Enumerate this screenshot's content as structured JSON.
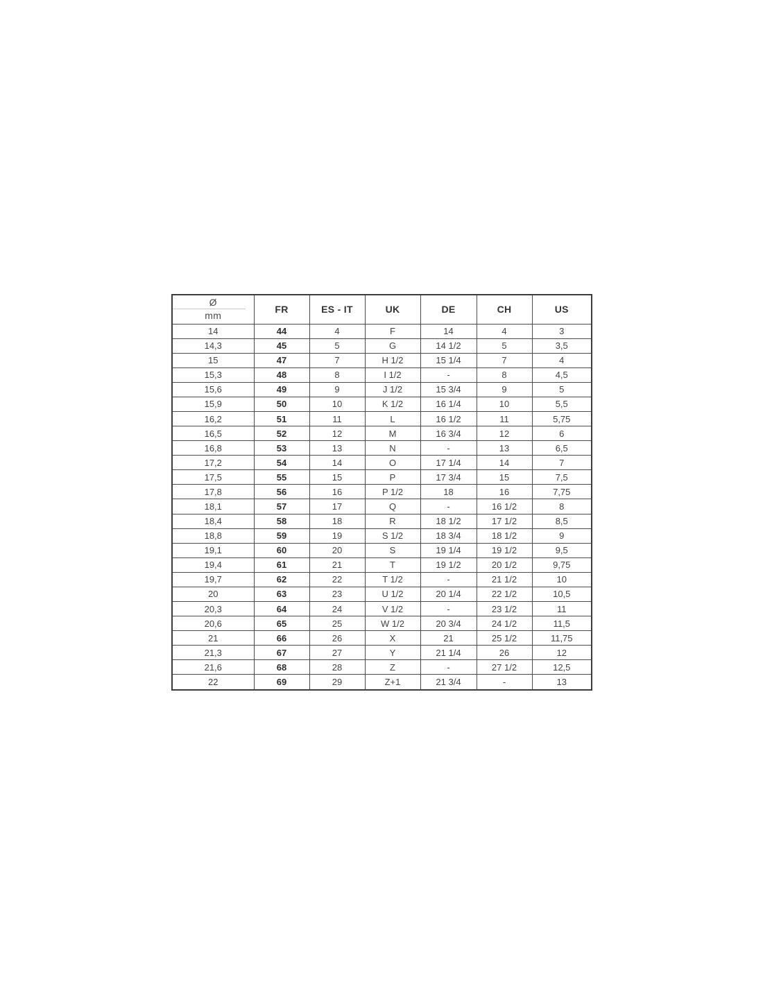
{
  "header": {
    "diameter_symbol": "Ø",
    "diameter_unit": "mm"
  },
  "chart_data": {
    "type": "table",
    "columns": [
      "Ø mm",
      "FR",
      "ES - IT",
      "UK",
      "DE",
      "CH",
      "US"
    ],
    "rows": [
      [
        "14",
        "44",
        "4",
        "F",
        "14",
        "4",
        "3"
      ],
      [
        "14,3",
        "45",
        "5",
        "G",
        "14 1/2",
        "5",
        "3,5"
      ],
      [
        "15",
        "47",
        "7",
        "H 1/2",
        "15 1/4",
        "7",
        "4"
      ],
      [
        "15,3",
        "48",
        "8",
        "I 1/2",
        "-",
        "8",
        "4,5"
      ],
      [
        "15,6",
        "49",
        "9",
        "J 1/2",
        "15 3/4",
        "9",
        "5"
      ],
      [
        "15,9",
        "50",
        "10",
        "K 1/2",
        "16 1/4",
        "10",
        "5,5"
      ],
      [
        "16,2",
        "51",
        "11",
        "L",
        "16 1/2",
        "11",
        "5,75"
      ],
      [
        "16,5",
        "52",
        "12",
        "M",
        "16 3/4",
        "12",
        "6"
      ],
      [
        "16,8",
        "53",
        "13",
        "N",
        "-",
        "13",
        "6,5"
      ],
      [
        "17,2",
        "54",
        "14",
        "O",
        "17 1/4",
        "14",
        "7"
      ],
      [
        "17,5",
        "55",
        "15",
        "P",
        "17 3/4",
        "15",
        "7,5"
      ],
      [
        "17,8",
        "56",
        "16",
        "P 1/2",
        "18",
        "16",
        "7,75"
      ],
      [
        "18,1",
        "57",
        "17",
        "Q",
        "-",
        "16 1/2",
        "8"
      ],
      [
        "18,4",
        "58",
        "18",
        "R",
        "18 1/2",
        "17 1/2",
        "8,5"
      ],
      [
        "18,8",
        "59",
        "19",
        "S 1/2",
        "18 3/4",
        "18 1/2",
        "9"
      ],
      [
        "19,1",
        "60",
        "20",
        "S",
        "19 1/4",
        "19 1/2",
        "9,5"
      ],
      [
        "19,4",
        "61",
        "21",
        "T",
        "19 1/2",
        "20 1/2",
        "9,75"
      ],
      [
        "19,7",
        "62",
        "22",
        "T 1/2",
        "-",
        "21 1/2",
        "10"
      ],
      [
        "20",
        "63",
        "23",
        "U 1/2",
        "20 1/4",
        "22 1/2",
        "10,5"
      ],
      [
        "20,3",
        "64",
        "24",
        "V 1/2",
        "-",
        "23 1/2",
        "11"
      ],
      [
        "20,6",
        "65",
        "25",
        "W 1/2",
        "20 3/4",
        "24 1/2",
        "11,5"
      ],
      [
        "21",
        "66",
        "26",
        "X",
        "21",
        "25 1/2",
        "11,75"
      ],
      [
        "21,3",
        "67",
        "27",
        "Y",
        "21 1/4",
        "26",
        "12"
      ],
      [
        "21,6",
        "68",
        "28",
        "Z",
        "-",
        "27 1/2",
        "12,5"
      ],
      [
        "22",
        "69",
        "29",
        "Z+1",
        "21 3/4",
        "-",
        "13"
      ]
    ]
  },
  "colors": {
    "background": "#ffffff",
    "grid": "#4a4a4a",
    "outer_border": "#3c3c3c",
    "text": "#434343",
    "faint_divider": "#cbcbcb"
  }
}
